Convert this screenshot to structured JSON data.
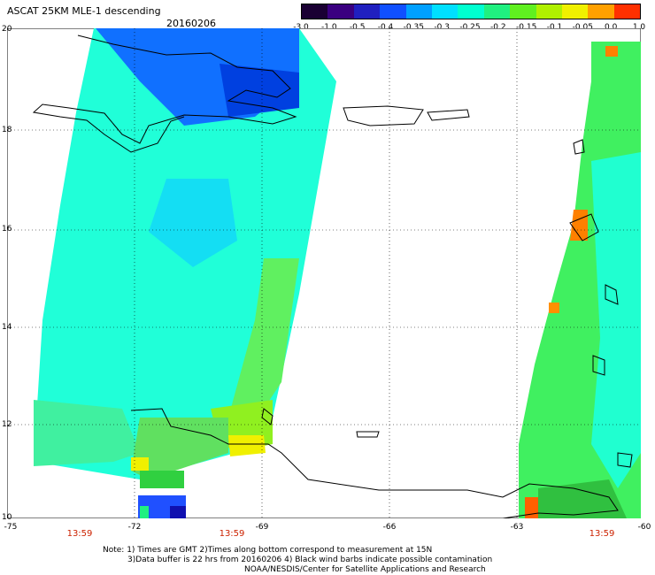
{
  "header": {
    "title": "ASCAT 25KM MLE-1 descending",
    "date": "20160206"
  },
  "colorbar": {
    "ticks": [
      "-3.0",
      "-1.0",
      "-0.5",
      "-0.4",
      "-0.35",
      "-0.3",
      "-0.25",
      "-0.2",
      "-0.15",
      "-0.1",
      "-0.05",
      "0.0",
      "1.0"
    ],
    "colors": [
      "#1a0033",
      "#3a0080",
      "#2020c0",
      "#1050ff",
      "#00a0ff",
      "#00e0ff",
      "#00ffd0",
      "#20f080",
      "#60f020",
      "#b0f000",
      "#f0f000",
      "#ffa000",
      "#ff3000"
    ]
  },
  "axes": {
    "lat_labels": [
      "20",
      "18",
      "16",
      "14",
      "12",
      "10"
    ],
    "lon_labels": [
      "-75",
      "-72",
      "-69",
      "-66",
      "-63",
      "-60"
    ],
    "time_labels": [
      "13:59",
      "13:59",
      "13:59"
    ]
  },
  "notes": {
    "line1": "Note: 1) Times are GMT 2)Times along bottom correspond to measurement at 15N",
    "line2": "3)Data buffer is 22 hrs from 20160206 4) Black wind barbs indicate possible contamination",
    "line3": "NOAA/NESDIS/Center for Satellite Applications and Research"
  }
}
